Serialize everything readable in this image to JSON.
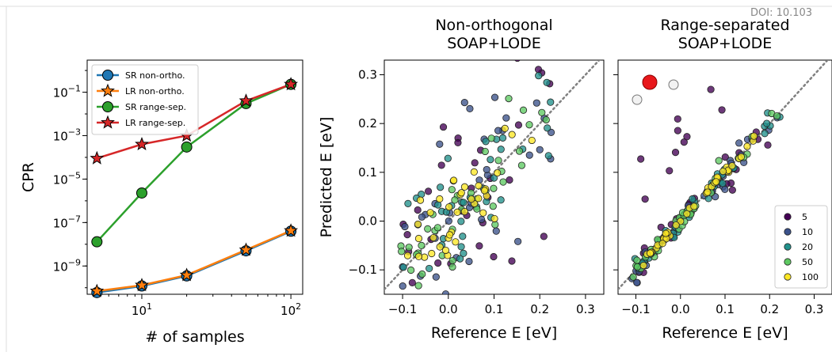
{
  "doi": "DOI: 10.103",
  "chart_data": [
    {
      "type": "line",
      "xlabel": "# of samples",
      "ylabel": "CPR",
      "xscale": "log",
      "yscale": "log",
      "xlim": [
        4.3,
        120
      ],
      "ylim": [
        5e-11,
        3
      ],
      "x_ticks": [
        10,
        100
      ],
      "x_tick_labels": [
        [
          "10",
          "1"
        ],
        [
          "10",
          "2"
        ]
      ],
      "y_ticks": [
        1e-09,
        1e-07,
        1e-05,
        0.001,
        0.1
      ],
      "y_tick_labels": [
        [
          "10",
          "−9"
        ],
        [
          "10",
          "−7"
        ],
        [
          "10",
          "−5"
        ],
        [
          "10",
          "−3"
        ],
        [
          "10",
          "−1"
        ]
      ],
      "x": [
        5,
        10,
        20,
        50,
        100
      ],
      "legend_position": "top-left",
      "series": [
        {
          "name": "SR non-ortho.",
          "color": "#1f77b4",
          "marker": "circle",
          "values": [
            6e-11,
            1.2e-10,
            3.5e-10,
            5e-09,
            4e-08
          ]
        },
        {
          "name": "LR non-ortho.",
          "color": "#ff7f0e",
          "marker": "star",
          "values": [
            7e-11,
            1.3e-10,
            3.8e-10,
            5.5e-09,
            4.2e-08
          ]
        },
        {
          "name": "SR range-sep.",
          "color": "#2ca02c",
          "marker": "circle",
          "values": [
            1.3e-08,
            2.3e-06,
            0.0003,
            0.03,
            0.23
          ]
        },
        {
          "name": "LR range-sep.",
          "color": "#d62728",
          "marker": "star",
          "values": [
            9e-05,
            0.0004,
            0.001,
            0.04,
            0.23
          ]
        }
      ]
    },
    {
      "type": "scatter",
      "title": [
        "Non-orthogonal",
        "SOAP+LODE"
      ],
      "xlabel": "Reference E [eV]",
      "ylabel": "Predicted E [eV]",
      "xlim": [
        -0.14,
        0.34
      ],
      "ylim": [
        -0.15,
        0.33
      ],
      "x_ticks": [
        -0.1,
        0.0,
        0.1,
        0.2,
        0.3
      ],
      "x_tick_labels": [
        "−0.1",
        "0.0",
        "0.1",
        "0.2",
        "0.3"
      ],
      "y_ticks": [
        -0.1,
        0.0,
        0.1,
        0.2,
        0.3
      ],
      "y_tick_labels": [
        "−0.1",
        "0.0",
        "0.1",
        "0.2",
        "0.3"
      ],
      "diagonal": true,
      "spread": 0.08,
      "seed": 11
    },
    {
      "type": "scatter",
      "title": [
        "Range-separated",
        "SOAP+LODE"
      ],
      "xlabel": "Reference E [eV]",
      "xlim": [
        -0.14,
        0.34
      ],
      "ylim": [
        -0.15,
        0.33
      ],
      "x_ticks": [
        -0.1,
        0.0,
        0.1,
        0.2,
        0.3
      ],
      "x_tick_labels": [
        "−0.1",
        "0.0",
        "0.1",
        "0.2",
        "0.3"
      ],
      "diagonal": true,
      "spread": 0.012,
      "seed": 29,
      "legend_position": "lower-right"
    }
  ],
  "sample_series": [
    {
      "name": "5",
      "color": "#440154"
    },
    {
      "name": "10",
      "color": "#3b528b"
    },
    {
      "name": "20",
      "color": "#21918c"
    },
    {
      "name": "50",
      "color": "#5ec962"
    },
    {
      "name": "100",
      "color": "#fde725"
    }
  ]
}
